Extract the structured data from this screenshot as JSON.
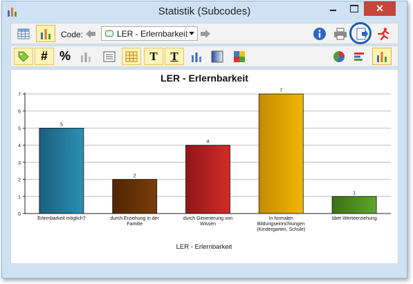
{
  "window": {
    "title": "Statistik (Subcodes)",
    "close_glyph": "✕"
  },
  "toolbar": {
    "code_label": "Code:",
    "code_value": "LER - Erlernbarkeit",
    "row1_icons": [
      "table-view-icon",
      "chart-view-icon",
      "back-arrow-icon",
      "forward-arrow-icon",
      "info-icon",
      "print-icon",
      "export-icon",
      "exit-runner-icon"
    ],
    "row2_icons": [
      "tag-icon",
      "hash-icon",
      "percent-icon",
      "bar-3d-icon",
      "list-icon",
      "grid-icon",
      "title-text-icon",
      "text-format-icon",
      "bar-style-icon",
      "gradient-icon",
      "palette-icon",
      "pie-chart-icon",
      "horizontal-bar-icon",
      "vertical-bar-icon"
    ],
    "hash_glyph": "#",
    "percent_glyph": "%",
    "title_glyph": "T"
  },
  "chart_data": {
    "type": "bar",
    "title": "LER - Erlernbarkeit",
    "xlabel": "LER - Erlernbarkeit",
    "ylabel": "",
    "ylim": [
      0,
      7
    ],
    "yticks": [
      0,
      1,
      2,
      3,
      4,
      5,
      6,
      7
    ],
    "grid": true,
    "categories": [
      [
        "Erlernbarkeit möglich?"
      ],
      [
        "durch Erziehung in der",
        "Familie"
      ],
      [
        "durch Generierung von",
        "Wissen"
      ],
      [
        "In formalen",
        "Bildungseinrichtungen",
        "(Kindergarten, Schule)"
      ],
      [
        "über Werteerziehung"
      ]
    ],
    "values": [
      5,
      2,
      4,
      7,
      1
    ],
    "colors": [
      "#2b8fb5",
      "#7a3d08",
      "#d42a2a",
      "#f0b800",
      "#5ea62b"
    ],
    "colors_dark": [
      "#1c5f7e",
      "#4f2604",
      "#8e1717",
      "#c48a00",
      "#3a7118"
    ]
  }
}
